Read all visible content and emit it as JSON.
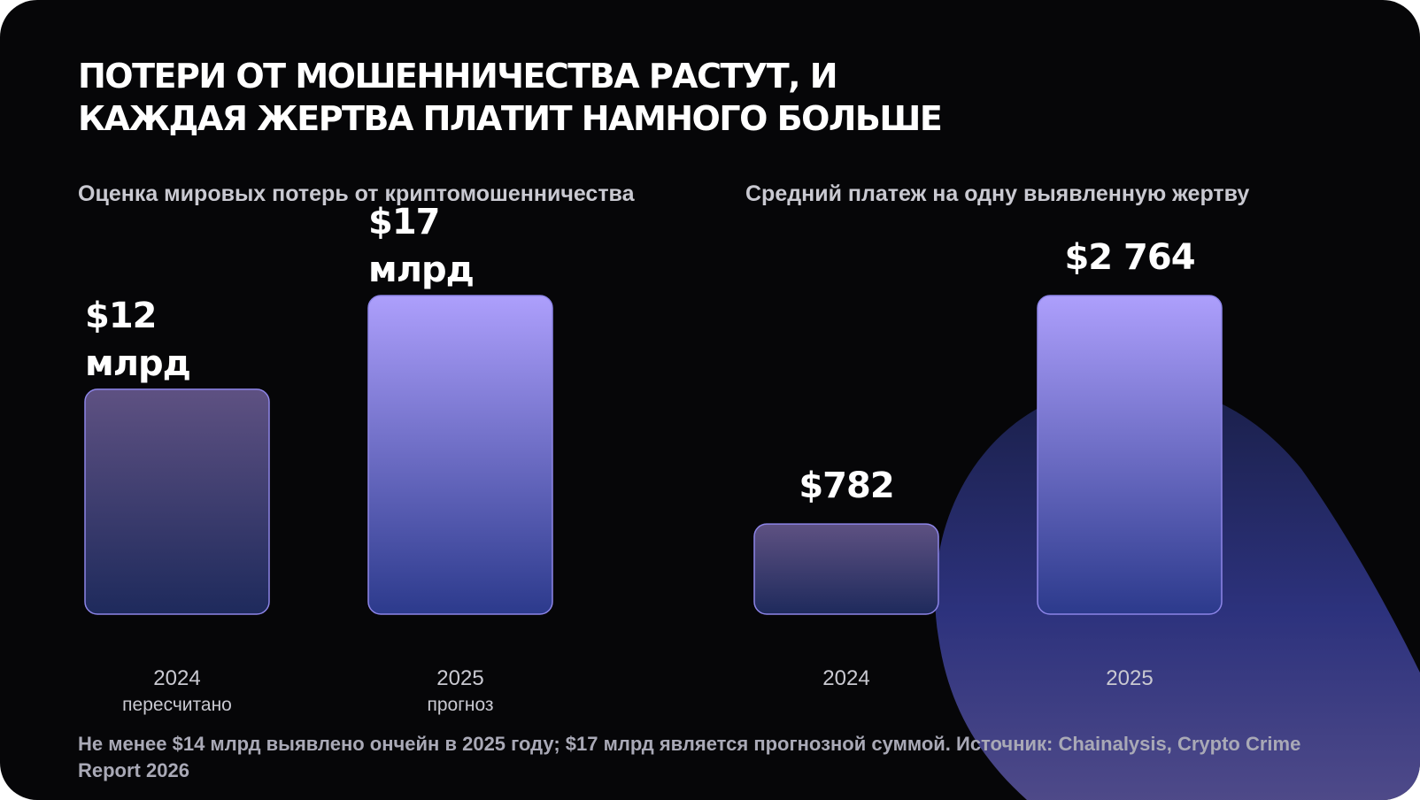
{
  "title": "Потери от мошенничества растут, и каждая жертва платит намного больше",
  "colors": {
    "background": "#060608",
    "bar_top": "#ad9ffc",
    "bar_bottom": "#2c3a8c",
    "bar_dim_top": "#5e5182",
    "bar_dim_bottom": "#1e2a5c",
    "bar_border": "#8d85e8",
    "text": "#ffffff",
    "muted": "#c9c9d1"
  },
  "chart_data": [
    {
      "type": "bar",
      "title": "Оценка мировых потерь от криптомошенничества",
      "categories": [
        "2024",
        "2025"
      ],
      "category_notes": [
        "пересчитано",
        "прогноз"
      ],
      "values": [
        12,
        17
      ],
      "value_labels": [
        "$12 млрд",
        "$17 млрд"
      ],
      "ylim": [
        0,
        17
      ]
    },
    {
      "type": "bar",
      "title": "Средний платеж на одну выявленную жертву",
      "categories": [
        "2024",
        "2025"
      ],
      "values": [
        782,
        2764
      ],
      "value_labels": [
        "$782",
        "$2 764"
      ],
      "ylim": [
        0,
        2764
      ]
    }
  ],
  "footnote": "Не менее $14 млрд выявлено ончейн в 2025 году; $17 млрд является прогнозной суммой. Источник: Chainalysis, Crypto Crime Report 2026"
}
